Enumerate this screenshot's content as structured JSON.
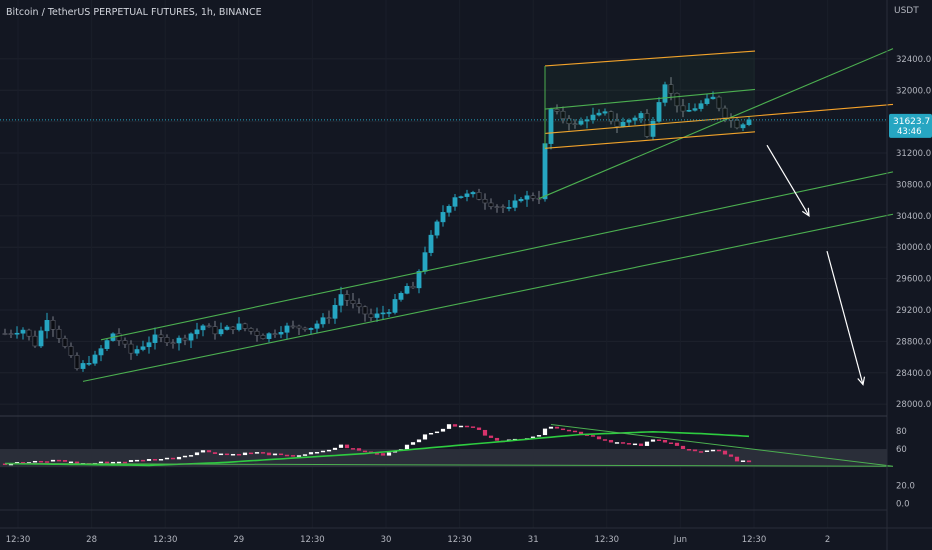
{
  "header": {
    "title": "Bitcoin / TetherUS PERPETUAL FUTURES, 1h, BINANCE",
    "currency": "USDT"
  },
  "price_badge": {
    "price": "31623.7",
    "countdown": "43:46"
  },
  "colors": {
    "background": "#131722",
    "up": "#26a6c2",
    "down": "#0b0d12",
    "channel": "#4caf50",
    "flag": "#f7a32a",
    "rsi_up": "#ffffff",
    "rsi_down": "#d6336c",
    "rsi_ma": "#2ecc40",
    "text": "#b2b5be"
  },
  "chart_data": [
    {
      "type": "candlestick",
      "series": "BTCUSDT perpetual, 1h",
      "y_ticks": [
        28000,
        28400,
        28800,
        29200,
        29600,
        30000,
        30400,
        30800,
        31200,
        31600,
        32000,
        32400
      ],
      "y_tick_labels": [
        "28000.0",
        "28400.0",
        "28800.0",
        "29200.0",
        "29600.0",
        "30000.0",
        "30400.0",
        "30800.0",
        "31200.0",
        "",
        "32000.0",
        "32400.0"
      ],
      "ylim": [
        27900,
        32870
      ],
      "x_labels": [
        "12:30",
        "28",
        "12:30",
        "29",
        "12:30",
        "30",
        "12:30",
        "31",
        "12:30",
        "Jun",
        "12:30",
        "2"
      ],
      "anchors": [
        {
          "i": 0,
          "v": 28900
        },
        {
          "i": 3,
          "v": 28950
        },
        {
          "i": 5,
          "v": 28760
        },
        {
          "i": 7,
          "v": 29100
        },
        {
          "i": 9,
          "v": 28860
        },
        {
          "i": 12,
          "v": 28450
        },
        {
          "i": 15,
          "v": 28600
        },
        {
          "i": 18,
          "v": 28900
        },
        {
          "i": 21,
          "v": 28650
        },
        {
          "i": 25,
          "v": 28850
        },
        {
          "i": 28,
          "v": 28800
        },
        {
          "i": 30,
          "v": 28850
        },
        {
          "i": 33,
          "v": 29000
        },
        {
          "i": 35,
          "v": 28920
        },
        {
          "i": 39,
          "v": 29000
        },
        {
          "i": 43,
          "v": 28860
        },
        {
          "i": 47,
          "v": 28980
        },
        {
          "i": 51,
          "v": 28980
        },
        {
          "i": 54,
          "v": 29120
        },
        {
          "i": 56,
          "v": 29400
        },
        {
          "i": 58,
          "v": 29260
        },
        {
          "i": 61,
          "v": 29100
        },
        {
          "i": 64,
          "v": 29200
        },
        {
          "i": 67,
          "v": 29500
        },
        {
          "i": 68,
          "v": 29450
        },
        {
          "i": 70,
          "v": 29950
        },
        {
          "i": 72,
          "v": 30300
        },
        {
          "i": 73,
          "v": 30450
        },
        {
          "i": 75,
          "v": 30650
        },
        {
          "i": 78,
          "v": 30670
        },
        {
          "i": 81,
          "v": 30550
        },
        {
          "i": 84,
          "v": 30480
        },
        {
          "i": 86,
          "v": 30640
        },
        {
          "i": 89,
          "v": 30640
        },
        {
          "i": 90,
          "v": 31300
        },
        {
          "i": 91,
          "v": 31750
        },
        {
          "i": 93,
          "v": 31650
        },
        {
          "i": 95,
          "v": 31550
        },
        {
          "i": 97,
          "v": 31650
        },
        {
          "i": 100,
          "v": 31700
        },
        {
          "i": 102,
          "v": 31550
        },
        {
          "i": 104,
          "v": 31620
        },
        {
          "i": 106,
          "v": 31700
        },
        {
          "i": 107,
          "v": 31400
        },
        {
          "i": 109,
          "v": 31880
        },
        {
          "i": 110,
          "v": 32100
        },
        {
          "i": 111,
          "v": 31950
        },
        {
          "i": 113,
          "v": 31700
        },
        {
          "i": 115,
          "v": 31780
        },
        {
          "i": 118,
          "v": 31900
        },
        {
          "i": 120,
          "v": 31680
        },
        {
          "i": 122,
          "v": 31550
        },
        {
          "i": 124,
          "v": 31623
        }
      ],
      "trendlines": [
        {
          "name": "ascending-channel-upper",
          "color": "channel",
          "from": {
            "i": 16,
            "v": 28820
          },
          "to": {
            "i": 148,
            "v": 30960
          }
        },
        {
          "name": "ascending-channel-lower",
          "color": "channel",
          "from": {
            "i": 13,
            "v": 28290
          },
          "to": {
            "i": 148,
            "v": 30420
          }
        },
        {
          "name": "rising-support",
          "color": "channel",
          "from": {
            "i": 89,
            "v": 30620
          },
          "to": {
            "i": 148,
            "v": 32530
          }
        },
        {
          "name": "flag-upper",
          "color": "flag",
          "from": {
            "i": 90,
            "v": 32310
          },
          "to": {
            "i": 125,
            "v": 32500
          }
        },
        {
          "name": "flag-lower",
          "color": "flag",
          "from": {
            "i": 90,
            "v": 31260
          },
          "to": {
            "i": 125,
            "v": 31470
          }
        },
        {
          "name": "flag-extension",
          "color": "flag",
          "from": {
            "i": 90,
            "v": 31450
          },
          "to": {
            "i": 148,
            "v": 31820
          }
        },
        {
          "name": "flag-midline",
          "color": "channel",
          "from": {
            "i": 90,
            "v": 31760
          },
          "to": {
            "i": 125,
            "v": 32010
          }
        }
      ],
      "arrows": [
        {
          "name": "projection-arrow-1",
          "from": {
            "i": 127,
            "v": 31300
          },
          "to": {
            "i": 134,
            "v": 30400
          }
        },
        {
          "name": "projection-arrow-2",
          "from": {
            "i": 137,
            "v": 29950
          },
          "to": {
            "i": 143,
            "v": 28250
          }
        }
      ]
    },
    {
      "type": "bar",
      "series": "RSI",
      "y_ticks": [
        80,
        60,
        20,
        0
      ],
      "y_tick_labels": [
        "80",
        "60",
        "20.0",
        "0.0"
      ],
      "ylim": [
        -5,
        92
      ],
      "band": [
        40,
        60
      ],
      "anchors": [
        {
          "i": 0,
          "v": 44
        },
        {
          "i": 6,
          "v": 46
        },
        {
          "i": 9,
          "v": 48
        },
        {
          "i": 12,
          "v": 44
        },
        {
          "i": 16,
          "v": 45
        },
        {
          "i": 21,
          "v": 47
        },
        {
          "i": 28,
          "v": 50
        },
        {
          "i": 33,
          "v": 58
        },
        {
          "i": 37,
          "v": 54
        },
        {
          "i": 42,
          "v": 56
        },
        {
          "i": 47,
          "v": 52
        },
        {
          "i": 53,
          "v": 57
        },
        {
          "i": 56,
          "v": 64
        },
        {
          "i": 59,
          "v": 58
        },
        {
          "i": 63,
          "v": 54
        },
        {
          "i": 66,
          "v": 61
        },
        {
          "i": 69,
          "v": 72
        },
        {
          "i": 72,
          "v": 80
        },
        {
          "i": 74,
          "v": 86
        },
        {
          "i": 78,
          "v": 84
        },
        {
          "i": 80,
          "v": 76
        },
        {
          "i": 83,
          "v": 68
        },
        {
          "i": 86,
          "v": 72
        },
        {
          "i": 89,
          "v": 76
        },
        {
          "i": 91,
          "v": 86
        },
        {
          "i": 94,
          "v": 80
        },
        {
          "i": 97,
          "v": 76
        },
        {
          "i": 100,
          "v": 70
        },
        {
          "i": 103,
          "v": 66
        },
        {
          "i": 106,
          "v": 64
        },
        {
          "i": 108,
          "v": 70
        },
        {
          "i": 111,
          "v": 68
        },
        {
          "i": 113,
          "v": 60
        },
        {
          "i": 116,
          "v": 56
        },
        {
          "i": 119,
          "v": 59
        },
        {
          "i": 122,
          "v": 47
        },
        {
          "i": 124,
          "v": 46
        }
      ],
      "ma": [
        {
          "i": 0,
          "v": 44
        },
        {
          "i": 12,
          "v": 43
        },
        {
          "i": 24,
          "v": 42
        },
        {
          "i": 36,
          "v": 45
        },
        {
          "i": 48,
          "v": 50
        },
        {
          "i": 60,
          "v": 55
        },
        {
          "i": 72,
          "v": 62
        },
        {
          "i": 84,
          "v": 69
        },
        {
          "i": 96,
          "v": 76
        },
        {
          "i": 108,
          "v": 79
        },
        {
          "i": 116,
          "v": 77
        },
        {
          "i": 124,
          "v": 74
        }
      ],
      "trendlines": [
        {
          "name": "rsi-resistance",
          "color": "channel",
          "from": {
            "i": 91,
            "v": 87
          },
          "to": {
            "i": 148,
            "v": 41
          }
        },
        {
          "name": "rsi-ma-base",
          "color": "channel",
          "from": {
            "i": 0,
            "v": 44
          },
          "to": {
            "i": 148,
            "v": 41
          }
        }
      ]
    }
  ]
}
